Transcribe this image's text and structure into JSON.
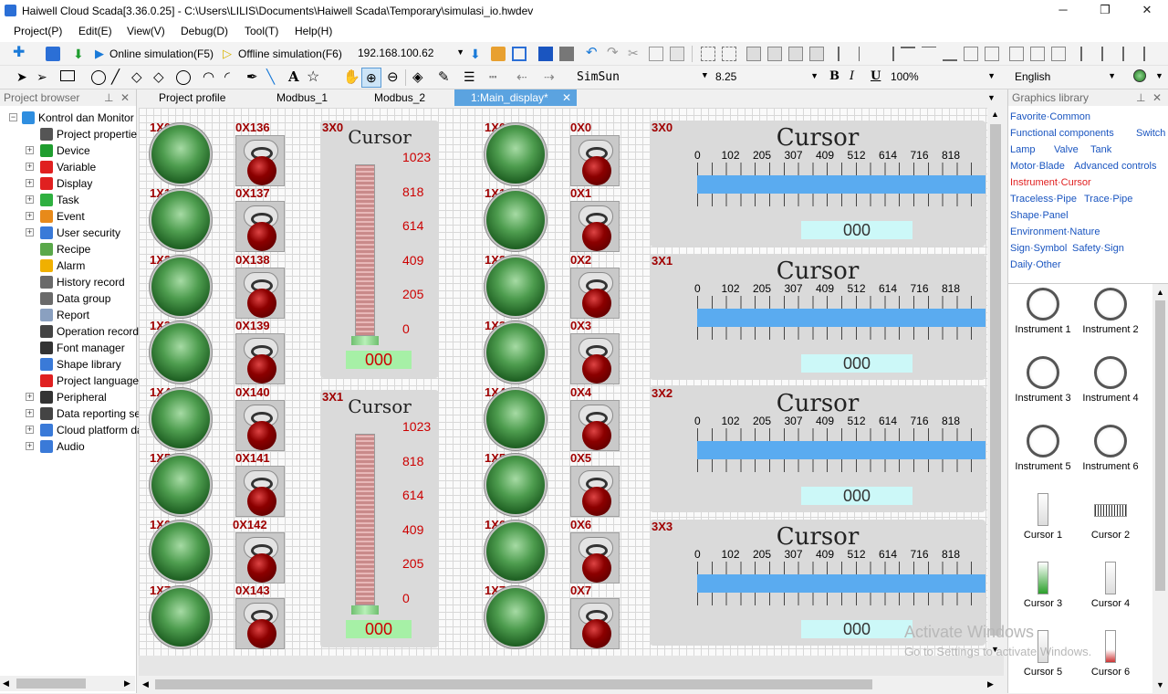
{
  "window": {
    "title": "Haiwell Cloud Scada[3.36.0.25] - C:\\Users\\LILIS\\Documents\\Haiwell Scada\\Temporary\\simulasi_io.hwdev",
    "minimize": "─",
    "maximize": "❐",
    "close": "✕"
  },
  "menu": [
    "Project(P)",
    "Edit(E)",
    "View(V)",
    "Debug(D)",
    "Tool(T)",
    "Help(H)"
  ],
  "toolbar": {
    "online": "Online simulation(F5)",
    "offline": "Offline simulation(F6)",
    "ip": "192.168.100.62",
    "font": "SimSun",
    "size": "8.25",
    "bold": "B",
    "italic": "I",
    "underline": "U",
    "zoom": "100%",
    "language": "English"
  },
  "project_browser": {
    "title": "Project browser",
    "pin": "⊥",
    "close": "✕",
    "items": [
      {
        "label": "Kontrol dan Monitor",
        "color": "#2f8ee0"
      },
      {
        "label": "Project propertie",
        "color": "#555555"
      },
      {
        "label": "Device",
        "color": "#1f9d2f"
      },
      {
        "label": "Variable",
        "color": "#e02020"
      },
      {
        "label": "Display",
        "color": "#e02020"
      },
      {
        "label": "Task",
        "color": "#2fb040"
      },
      {
        "label": "Event",
        "color": "#e88a1a"
      },
      {
        "label": "User security",
        "color": "#3a7ad8"
      },
      {
        "label": "Recipe",
        "color": "#5aa84a"
      },
      {
        "label": "Alarm",
        "color": "#f0b000"
      },
      {
        "label": "History record",
        "color": "#6a6a6a"
      },
      {
        "label": "Data group",
        "color": "#6a6a6a"
      },
      {
        "label": "Report",
        "color": "#8aa0c0"
      },
      {
        "label": "Operation record",
        "color": "#444444"
      },
      {
        "label": "Font manager",
        "color": "#333333"
      },
      {
        "label": "Shape library",
        "color": "#3a7ad8"
      },
      {
        "label": "Project language",
        "color": "#e02020"
      },
      {
        "label": "Peripheral",
        "color": "#333333"
      },
      {
        "label": "Data reporting se",
        "color": "#444444"
      },
      {
        "label": "Cloud platform da",
        "color": "#3a7ad8"
      },
      {
        "label": "Audio",
        "color": "#3a7ad8"
      }
    ]
  },
  "tabs": [
    "Project profile",
    "Modbus_1",
    "Modbus_2",
    "1:Main_display*"
  ],
  "tab_close": "✕",
  "canvas": {
    "lamps_left": [
      "1X0",
      "1X1",
      "1X2",
      "1X3",
      "1X4",
      "1X5",
      "1X6",
      "1X7"
    ],
    "switches_left": [
      "0X136",
      "0X137",
      "0X138",
      "0X139",
      "0X140",
      "0X141",
      "0X142",
      "0X143"
    ],
    "lamps_right": [
      "1X0",
      "1X1",
      "1X2",
      "1X3",
      "1X4",
      "1X5",
      "1X6",
      "1X7"
    ],
    "switches_right": [
      "0X0",
      "0X1",
      "0X2",
      "0X3",
      "0X4",
      "0X5",
      "0X6",
      "0X7"
    ],
    "vcursors": [
      {
        "tag": "3X0",
        "title": "Cursor",
        "ticks": [
          "1023",
          "818",
          "614",
          "409",
          "205",
          "0"
        ],
        "value": "000"
      },
      {
        "tag": "3X1",
        "title": "Cursor",
        "ticks": [
          "1023",
          "818",
          "614",
          "409",
          "205",
          "0"
        ],
        "value": "000"
      }
    ],
    "hcursors": [
      {
        "tag": "3X0",
        "title": "Cursor",
        "value": "000"
      },
      {
        "tag": "3X1",
        "title": "Cursor",
        "value": "000"
      },
      {
        "tag": "3X2",
        "title": "Cursor",
        "value": "000"
      },
      {
        "tag": "3X3",
        "title": "Cursor",
        "value": "000"
      }
    ],
    "hticks": [
      "0",
      "102",
      "205",
      "307",
      "409",
      "512",
      "614",
      "716",
      "818"
    ]
  },
  "graphics_library": {
    "title": "Graphics library",
    "pin": "⊥",
    "close": "✕",
    "categories": [
      [
        "Favorite·Common"
      ],
      [
        "Functional components",
        "Switch"
      ],
      [
        "Lamp",
        "Valve",
        "Tank"
      ],
      [
        "Motor·Blade",
        "Advanced controls"
      ],
      [
        "Instrument·Cursor"
      ],
      [
        "Traceless·Pipe",
        "Trace·Pipe"
      ],
      [
        "Shape·Panel"
      ],
      [
        "Environment·Nature"
      ],
      [
        "Sign·Symbol",
        "Safety·Sign"
      ],
      [
        "Daily·Other"
      ]
    ],
    "items": [
      "Instrument 1",
      "Instrument 2",
      "Instrument 3",
      "Instrument 4",
      "Instrument 5",
      "Instrument 6",
      "Cursor 1",
      "Cursor 2",
      "Cursor 3",
      "Cursor 4",
      "Cursor 5",
      "Cursor 6"
    ]
  },
  "watermark": {
    "line1": "Activate Windows",
    "line2": "Go to Settings to activate Windows."
  }
}
